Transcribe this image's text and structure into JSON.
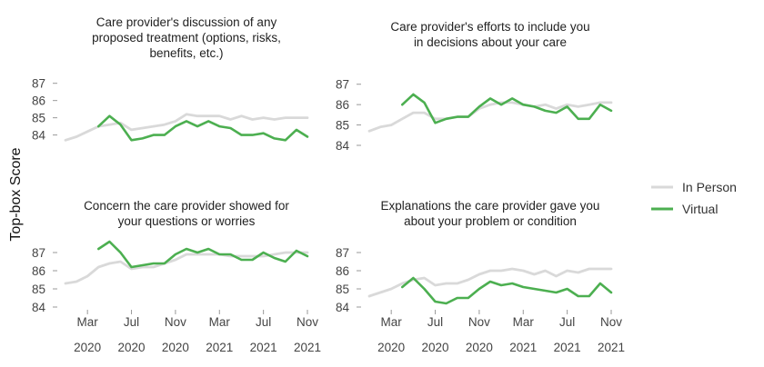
{
  "chart_data": {
    "type": "line",
    "ylabel": "Top-box Score",
    "x": [
      "2020-01",
      "2020-02",
      "2020-03",
      "2020-04",
      "2020-05",
      "2020-06",
      "2020-07",
      "2020-08",
      "2020-09",
      "2020-10",
      "2020-11",
      "2020-12",
      "2021-01",
      "2021-02",
      "2021-03",
      "2021-04",
      "2021-05",
      "2021-06",
      "2021-07",
      "2021-08",
      "2021-09",
      "2021-10",
      "2021-11"
    ],
    "x_ticks": [
      {
        "x": "2020-03",
        "month": "Mar",
        "year": "2020"
      },
      {
        "x": "2020-07",
        "month": "Jul",
        "year": "2020"
      },
      {
        "x": "2020-11",
        "month": "Nov",
        "year": "2020"
      },
      {
        "x": "2021-03",
        "month": "Mar",
        "year": "2021"
      },
      {
        "x": "2021-07",
        "month": "Jul",
        "year": "2021"
      },
      {
        "x": "2021-11",
        "month": "Nov",
        "year": "2021"
      }
    ],
    "legend": {
      "position": "right",
      "entries": [
        "In Person",
        "Virtual"
      ]
    },
    "grid": false,
    "colors": {
      "In Person": "#d9d9d9",
      "Virtual": "#4caf50"
    },
    "panels": [
      {
        "title": [
          "Care provider's discussion of any",
          "proposed treatment (options, risks,",
          "benefits, etc.)"
        ],
        "ylim": [
          83.4,
          87.3
        ],
        "yticks": [
          84,
          85,
          86,
          87
        ],
        "series": [
          {
            "name": "In Person",
            "values": [
              83.7,
              83.9,
              84.2,
              84.5,
              84.6,
              84.7,
              84.3,
              84.4,
              84.5,
              84.6,
              84.8,
              85.2,
              85.1,
              85.1,
              85.1,
              84.9,
              85.1,
              84.9,
              85.0,
              84.9,
              85.0,
              85.0,
              85.0
            ]
          },
          {
            "name": "Virtual",
            "values": [
              null,
              null,
              null,
              84.5,
              85.1,
              84.6,
              83.7,
              83.8,
              84.0,
              84.0,
              84.5,
              84.8,
              84.5,
              84.8,
              84.5,
              84.4,
              84.0,
              84.0,
              84.1,
              83.8,
              83.7,
              84.3,
              83.9
            ]
          }
        ]
      },
      {
        "title": [
          "Care provider's efforts to include you",
          "in decisions about your care"
        ],
        "ylim": [
          84.0,
          87.3
        ],
        "yticks": [
          84,
          85,
          86,
          87
        ],
        "series": [
          {
            "name": "In Person",
            "values": [
              84.7,
              84.9,
              85.0,
              85.3,
              85.6,
              85.6,
              85.3,
              85.3,
              85.4,
              85.4,
              85.8,
              86.0,
              86.1,
              86.1,
              86.0,
              85.9,
              86.0,
              85.8,
              86.0,
              85.9,
              86.0,
              86.1,
              86.1
            ]
          },
          {
            "name": "Virtual",
            "values": [
              null,
              null,
              null,
              86.0,
              86.5,
              86.1,
              85.1,
              85.3,
              85.4,
              85.4,
              85.9,
              86.3,
              86.0,
              86.3,
              86.0,
              85.9,
              85.7,
              85.6,
              85.9,
              85.3,
              85.3,
              86.0,
              85.7
            ]
          }
        ]
      },
      {
        "title": [
          "Concern the care provider showed for",
          "your questions or worries"
        ],
        "ylim": [
          83.4,
          87.7
        ],
        "yticks": [
          84,
          85,
          86,
          87
        ],
        "series": [
          {
            "name": "In Person",
            "values": [
              85.3,
              85.4,
              85.7,
              86.2,
              86.4,
              86.5,
              86.1,
              86.2,
              86.2,
              86.4,
              86.6,
              86.9,
              86.9,
              86.9,
              86.9,
              86.8,
              86.8,
              86.8,
              86.8,
              86.9,
              87.0,
              87.0,
              87.0
            ]
          },
          {
            "name": "Virtual",
            "values": [
              null,
              null,
              null,
              87.2,
              87.6,
              87.0,
              86.2,
              86.3,
              86.4,
              86.4,
              86.9,
              87.2,
              87.0,
              87.2,
              86.9,
              86.9,
              86.6,
              86.6,
              87.0,
              86.7,
              86.5,
              87.1,
              86.8
            ]
          }
        ]
      },
      {
        "title": [
          "Explanations the care provider gave you",
          "about your problem or condition"
        ],
        "ylim": [
          83.4,
          87.7
        ],
        "yticks": [
          84,
          85,
          86,
          87
        ],
        "series": [
          {
            "name": "In Person",
            "values": [
              84.6,
              84.8,
              85.0,
              85.3,
              85.5,
              85.6,
              85.2,
              85.3,
              85.3,
              85.5,
              85.8,
              86.0,
              86.0,
              86.1,
              86.0,
              85.8,
              86.0,
              85.7,
              86.0,
              85.9,
              86.1,
              86.1,
              86.1
            ]
          },
          {
            "name": "Virtual",
            "values": [
              null,
              null,
              null,
              85.1,
              85.6,
              85.0,
              84.3,
              84.2,
              84.5,
              84.5,
              85.0,
              85.4,
              85.2,
              85.3,
              85.1,
              85.0,
              84.9,
              84.8,
              85.0,
              84.6,
              84.6,
              85.3,
              84.8
            ]
          }
        ]
      }
    ]
  }
}
